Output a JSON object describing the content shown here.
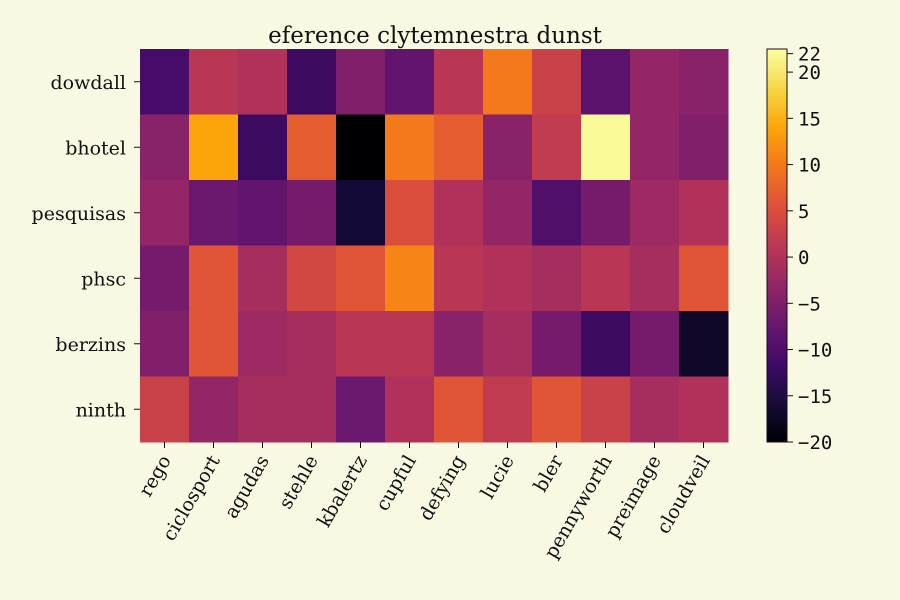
{
  "chart_data": {
    "type": "heatmap",
    "title": "eference clytemnestra dunst",
    "xlabel": "",
    "ylabel": "",
    "x_categories": [
      "rego",
      "ciclosport",
      "agudas",
      "stehle",
      "kbalertz",
      "cupful",
      "defying",
      "lucie",
      "bler",
      "pennyworth",
      "preimage",
      "cloudveil"
    ],
    "y_categories": [
      "dowdall",
      "bhotel",
      "pesquisas",
      "phsc",
      "berzins",
      "ninth"
    ],
    "values": [
      [
        -11,
        1,
        0,
        -12,
        -5,
        -8,
        1,
        10,
        3,
        -9,
        -3,
        -4
      ],
      [
        -4,
        14,
        -12,
        7,
        -20,
        10,
        7,
        -4,
        2,
        22,
        -3,
        -5
      ],
      [
        -3,
        -7,
        -8,
        -6,
        -16,
        5,
        0,
        -3,
        -10,
        -6,
        -2,
        0
      ],
      [
        -6,
        6,
        -1,
        4,
        6,
        11,
        1,
        0,
        -1,
        1,
        -1,
        6
      ],
      [
        -5,
        6,
        -2,
        -1,
        1,
        1,
        -4,
        -1,
        -6,
        -12,
        -6,
        -17
      ],
      [
        3,
        -3,
        -1,
        -1,
        -7,
        0,
        6,
        2,
        6,
        3,
        -1,
        0
      ]
    ],
    "colorscale": "inferno",
    "vmin": -20,
    "vmax": 22.5,
    "colorbar_ticks": [
      "22",
      "20",
      "15",
      "10",
      "5",
      "0",
      "−5",
      "−10",
      "−15",
      "−20"
    ]
  }
}
